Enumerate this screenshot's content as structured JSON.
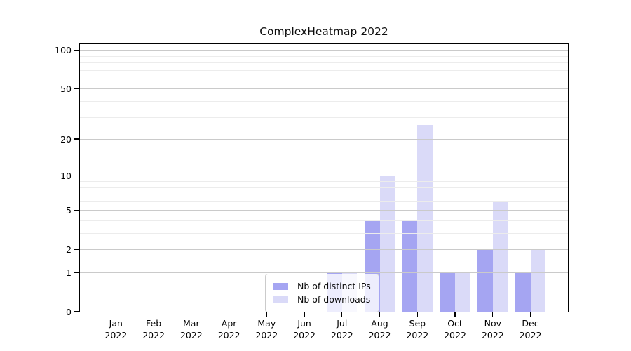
{
  "title": "ComplexHeatmap 2022",
  "chart_data": {
    "type": "bar",
    "title": "ComplexHeatmap 2022",
    "categories": [
      "Jan 2022",
      "Feb 2022",
      "Mar 2022",
      "Apr 2022",
      "May 2022",
      "Jun 2022",
      "Jul 2022",
      "Aug 2022",
      "Sep 2022",
      "Oct 2022",
      "Nov 2022",
      "Dec 2022"
    ],
    "series": [
      {
        "name": "Nb of distinct IPs",
        "color": "#a5a5f2",
        "values": [
          0,
          0,
          0,
          0,
          0,
          0,
          1,
          4,
          4,
          1,
          2,
          1
        ]
      },
      {
        "name": "Nb of downloads",
        "color": "#dadaf8",
        "values": [
          0,
          0,
          0,
          0,
          0,
          0,
          1,
          10,
          26,
          1,
          6,
          2
        ]
      }
    ],
    "xlabel": "",
    "ylabel": "",
    "yscale": "log1p",
    "ylim": [
      0,
      112
    ],
    "y_ticks": [
      0,
      1,
      2,
      5,
      10,
      20,
      50,
      100
    ],
    "y_minor_gridlines": [
      3,
      4,
      6,
      7,
      8,
      9,
      30,
      40,
      60,
      70,
      80,
      90
    ],
    "grid": "on",
    "legend_position": "inside-lower-center"
  }
}
